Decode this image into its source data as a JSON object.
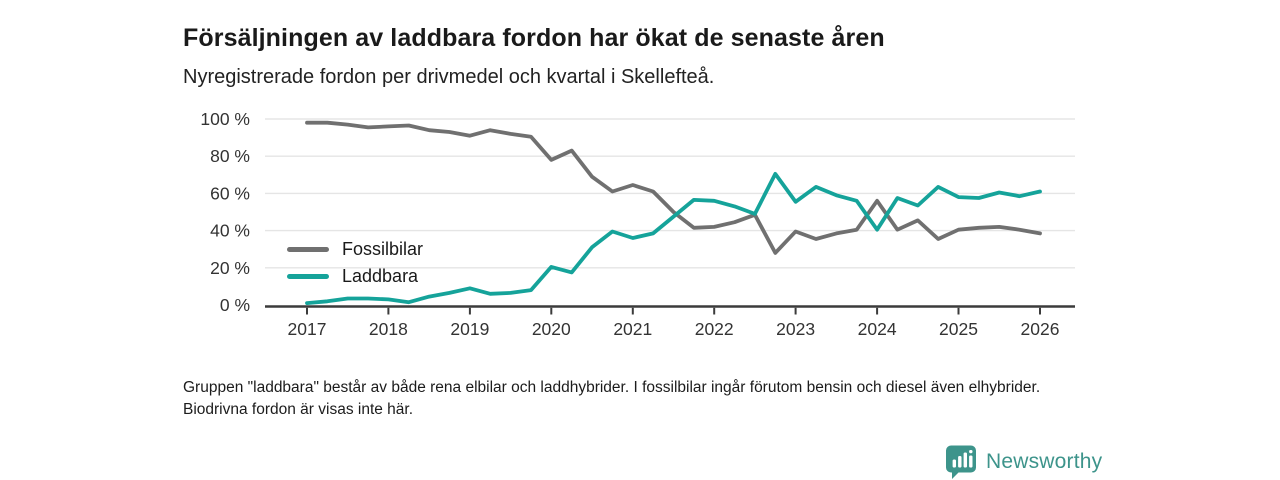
{
  "header": {
    "title": "Försäljningen av laddbara fordon har ökat de senaste åren",
    "subtitle": "Nyregistrerade fordon per drivmedel och kvartal i Skellefteå."
  },
  "chart_data": {
    "type": "line",
    "x_tick_labels": [
      "2017",
      "2018",
      "2019",
      "2020",
      "2021",
      "2022",
      "2023",
      "2024",
      "2025",
      "2026"
    ],
    "categories": [
      "2017Q1",
      "2017Q2",
      "2017Q3",
      "2017Q4",
      "2018Q1",
      "2018Q2",
      "2018Q3",
      "2018Q4",
      "2019Q1",
      "2019Q2",
      "2019Q3",
      "2019Q4",
      "2020Q1",
      "2020Q2",
      "2020Q3",
      "2020Q4",
      "2021Q1",
      "2021Q2",
      "2021Q3",
      "2021Q4",
      "2022Q1",
      "2022Q2",
      "2022Q3",
      "2022Q4",
      "2023Q1",
      "2023Q2",
      "2023Q3",
      "2023Q4",
      "2024Q1",
      "2024Q2",
      "2024Q3",
      "2024Q4",
      "2025Q1",
      "2025Q2",
      "2025Q3",
      "2025Q4",
      "2026Q1"
    ],
    "series": [
      {
        "name": "Fossilbilar",
        "color_key": "fossil",
        "values": [
          98,
          98,
          97,
          95.5,
          96,
          96.5,
          94,
          93,
          91,
          94,
          92,
          90.5,
          78,
          83,
          69,
          61,
          64.5,
          61,
          50,
          41.5,
          42,
          44.5,
          48.5,
          28,
          39.5,
          35.5,
          38.5,
          40.5,
          56,
          40.5,
          45.5,
          35.5,
          40.5,
          41.5,
          42,
          40.5,
          38.5
        ]
      },
      {
        "name": "Laddbara",
        "color_key": "laddbara",
        "values": [
          1,
          2,
          3.5,
          3.5,
          3,
          1.5,
          4.5,
          6.5,
          9,
          6,
          6.5,
          8,
          20.5,
          17.5,
          31,
          39.5,
          36,
          38.5,
          47.5,
          56.5,
          56,
          53,
          49,
          70.5,
          55.5,
          63.5,
          59,
          56,
          40.5,
          57.5,
          53.5,
          63.5,
          58,
          57.5,
          60.5,
          58.5,
          61
        ]
      }
    ],
    "ylim": [
      0,
      100
    ],
    "y_ticks": [
      0,
      20,
      40,
      60,
      80,
      100
    ],
    "y_tick_suffix": " %",
    "unit": "percent",
    "grid": true,
    "legend_position": "inside-left"
  },
  "footnote": "Gruppen \"laddbara\" består av både rena elbilar och laddhybrider. I fossilbilar ingår förutom bensin och diesel även elhybrider. Biodrivna fordon är visas inte här.",
  "logo": {
    "text": "Newsworthy",
    "icon": "bar-chart-pin-icon"
  },
  "colors": {
    "fossil": "#707070",
    "laddbara": "#15A39A",
    "grid": "#E5E5E5",
    "axis": "#3B3B3B",
    "axis_text": "#333333",
    "logo": "#3D948B"
  }
}
